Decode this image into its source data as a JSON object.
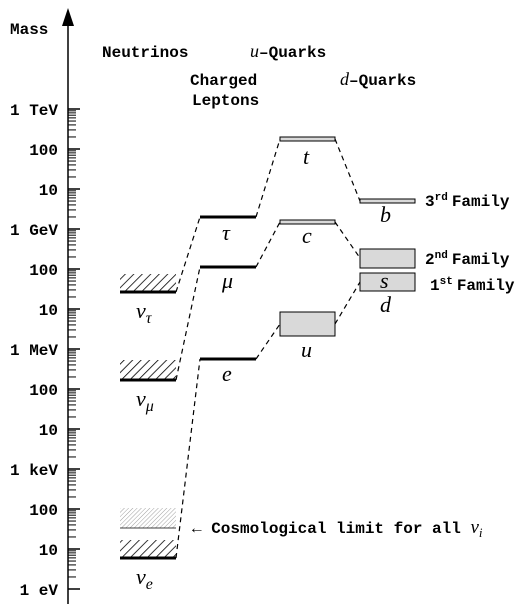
{
  "axis": {
    "title": "Mass",
    "ticks": [
      "1 TeV",
      "100",
      "10",
      "1 GeV",
      "100",
      "10",
      "1 MeV",
      "100",
      "10",
      "1 keV",
      "100",
      "10",
      "1 eV"
    ]
  },
  "columns": {
    "neutrinos": "Neutrinos",
    "charged": [
      "Charged",
      "Leptons"
    ],
    "u": {
      "letter": "u",
      "text": "–Quarks"
    },
    "d": {
      "letter": "d",
      "text": "–Quarks"
    }
  },
  "particles": {
    "nu_tau": {
      "symbol": "ν",
      "sub": "τ"
    },
    "nu_mu": {
      "symbol": "ν",
      "sub": "μ"
    },
    "nu_e": {
      "symbol": "ν",
      "sub": "e"
    },
    "tau": "τ",
    "mu": "μ",
    "e": "e",
    "t": "t",
    "c": "c",
    "u": "u",
    "b": "b",
    "s": "s",
    "d": "d"
  },
  "families": [
    {
      "num": "3",
      "sup": "rd",
      "word": "Family"
    },
    {
      "num": "2",
      "sup": "nd",
      "word": "Family"
    },
    {
      "num": "1",
      "sup": "st",
      "word": "Family"
    }
  ],
  "annotation": {
    "text": "← Cosmological limit for all ",
    "symbol": "ν",
    "sub": "i"
  }
}
